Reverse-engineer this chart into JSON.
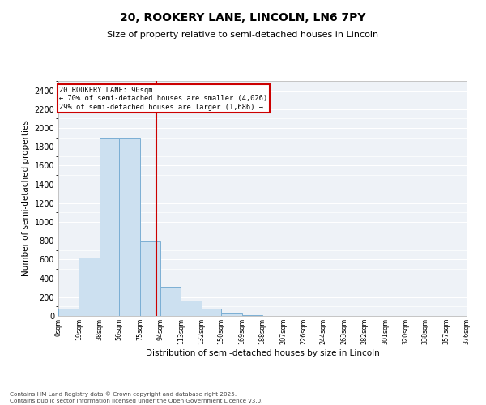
{
  "title": "20, ROOKERY LANE, LINCOLN, LN6 7PY",
  "subtitle": "Size of property relative to semi-detached houses in Lincoln",
  "xlabel": "Distribution of semi-detached houses by size in Lincoln",
  "ylabel": "Number of semi-detached properties",
  "bar_color": "#cce0f0",
  "bar_edge_color": "#7bafd4",
  "background_color": "#eef2f7",
  "grid_color": "#ffffff",
  "annotation_box_color": "#cc0000",
  "vline_color": "#cc0000",
  "property_size": 90,
  "annotation_line1": "20 ROOKERY LANE: 90sqm",
  "annotation_line2": "← 70% of semi-detached houses are smaller (4,026)",
  "annotation_line3": "29% of semi-detached houses are larger (1,686) →",
  "footer_line1": "Contains HM Land Registry data © Crown copyright and database right 2025.",
  "footer_line2": "Contains public sector information licensed under the Open Government Licence v3.0.",
  "bin_edges": [
    0,
    19,
    38,
    56,
    75,
    94,
    113,
    132,
    150,
    169,
    188,
    207,
    226,
    244,
    263,
    282,
    301,
    320,
    338,
    357,
    376
  ],
  "bin_labels": [
    "0sqm",
    "19sqm",
    "38sqm",
    "56sqm",
    "75sqm",
    "94sqm",
    "113sqm",
    "132sqm",
    "150sqm",
    "169sqm",
    "188sqm",
    "207sqm",
    "226sqm",
    "244sqm",
    "263sqm",
    "282sqm",
    "301sqm",
    "320sqm",
    "338sqm",
    "357sqm",
    "376sqm"
  ],
  "bar_heights": [
    75,
    625,
    1900,
    1900,
    790,
    310,
    160,
    75,
    30,
    5,
    2,
    1,
    0,
    0,
    0,
    0,
    0,
    0,
    0,
    0
  ],
  "ylim": [
    0,
    2500
  ],
  "yticks": [
    0,
    200,
    400,
    600,
    800,
    1000,
    1200,
    1400,
    1600,
    1800,
    2000,
    2200,
    2400
  ],
  "figsize": [
    6.0,
    5.0
  ],
  "dpi": 100
}
